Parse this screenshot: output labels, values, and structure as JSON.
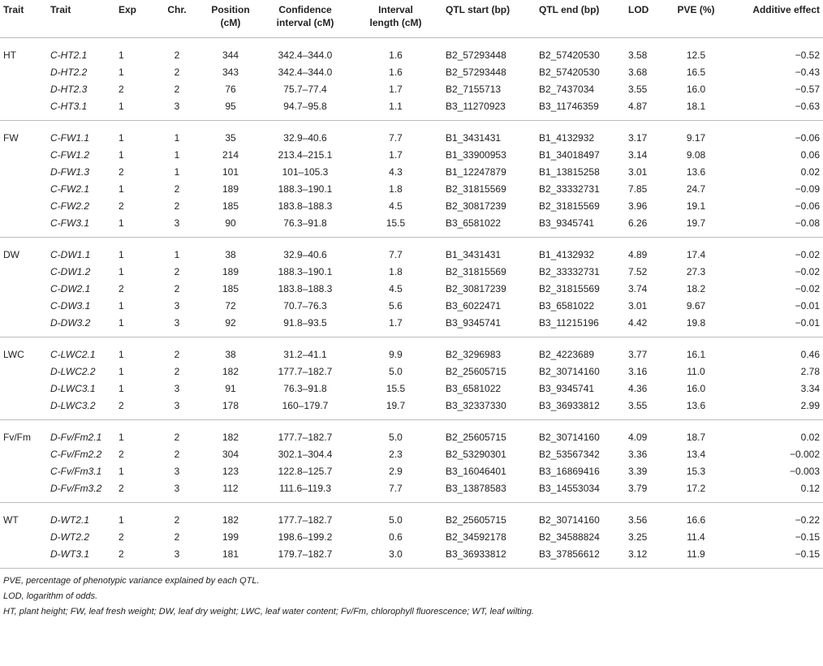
{
  "table": {
    "headers": [
      "Trait",
      "Trait",
      "Exp",
      "Chr.",
      "Position\n(cM)",
      "Confidence\ninterval (cM)",
      "Interval\nlength (cM)",
      "QTL start (bp)",
      "QTL end (bp)",
      "LOD",
      "PVE (%)",
      "Additive effect"
    ],
    "groups": [
      {
        "trait": "HT",
        "rows": [
          [
            "C-HT2.1",
            "1",
            "2",
            "344",
            "342.4–344.0",
            "1.6",
            "B2_57293448",
            "B2_57420530",
            "3.58",
            "12.5",
            "−0.52"
          ],
          [
            "D-HT2.2",
            "1",
            "2",
            "343",
            "342.4–344.0",
            "1.6",
            "B2_57293448",
            "B2_57420530",
            "3.68",
            "16.5",
            "−0.43"
          ],
          [
            "D-HT2.3",
            "2",
            "2",
            "76",
            "75.7–77.4",
            "1.7",
            "B2_7155713",
            "B2_7437034",
            "3.55",
            "16.0",
            "−0.57"
          ],
          [
            "C-HT3.1",
            "1",
            "3",
            "95",
            "94.7–95.8",
            "1.1",
            "B3_11270923",
            "B3_11746359",
            "4.87",
            "18.1",
            "−0.63"
          ]
        ]
      },
      {
        "trait": "FW",
        "rows": [
          [
            "C-FW1.1",
            "1",
            "1",
            "35",
            "32.9–40.6",
            "7.7",
            "B1_3431431",
            "B1_4132932",
            "3.17",
            "9.17",
            "−0.06"
          ],
          [
            "C-FW1.2",
            "1",
            "1",
            "214",
            "213.4–215.1",
            "1.7",
            "B1_33900953",
            "B1_34018497",
            "3.14",
            "9.08",
            "0.06"
          ],
          [
            "D-FW1.3",
            "2",
            "1",
            "101",
            "101–105.3",
            "4.3",
            "B1_12247879",
            "B1_13815258",
            "3.01",
            "13.6",
            "0.02"
          ],
          [
            "C-FW2.1",
            "1",
            "2",
            "189",
            "188.3–190.1",
            "1.8",
            "B2_31815569",
            "B2_33332731",
            "7.85",
            "24.7",
            "−0.09"
          ],
          [
            "C-FW2.2",
            "2",
            "2",
            "185",
            "183.8–188.3",
            "4.5",
            "B2_30817239",
            "B2_31815569",
            "3.96",
            "19.1",
            "−0.06"
          ],
          [
            "C-FW3.1",
            "1",
            "3",
            "90",
            "76.3–91.8",
            "15.5",
            "B3_6581022",
            "B3_9345741",
            "6.26",
            "19.7",
            "−0.08"
          ]
        ]
      },
      {
        "trait": "DW",
        "rows": [
          [
            "C-DW1.1",
            "1",
            "1",
            "38",
            "32.9–40.6",
            "7.7",
            "B1_3431431",
            "B1_4132932",
            "4.89",
            "17.4",
            "−0.02"
          ],
          [
            "C-DW1.2",
            "1",
            "2",
            "189",
            "188.3–190.1",
            "1.8",
            "B2_31815569",
            "B2_33332731",
            "7.52",
            "27.3",
            "−0.02"
          ],
          [
            "C-DW2.1",
            "2",
            "2",
            "185",
            "183.8–188.3",
            "4.5",
            "B2_30817239",
            "B2_31815569",
            "3.74",
            "18.2",
            "−0.02"
          ],
          [
            "C-DW3.1",
            "1",
            "3",
            "72",
            "70.7–76.3",
            "5.6",
            "B3_6022471",
            "B3_6581022",
            "3.01",
            "9.67",
            "−0.01"
          ],
          [
            "D-DW3.2",
            "1",
            "3",
            "92",
            "91.8–93.5",
            "1.7",
            "B3_9345741",
            "B3_11215196",
            "4.42",
            "19.8",
            "−0.01"
          ]
        ]
      },
      {
        "trait": "LWC",
        "rows": [
          [
            "C-LWC2.1",
            "1",
            "2",
            "38",
            "31.2–41.1",
            "9.9",
            "B2_3296983",
            "B2_4223689",
            "3.77",
            "16.1",
            "0.46"
          ],
          [
            "D-LWC2.2",
            "1",
            "2",
            "182",
            "177.7–182.7",
            "5.0",
            "B2_25605715",
            "B2_30714160",
            "3.16",
            "11.0",
            "2.78"
          ],
          [
            "D-LWC3.1",
            "1",
            "3",
            "91",
            "76.3–91.8",
            "15.5",
            "B3_6581022",
            "B3_9345741",
            "4.36",
            "16.0",
            "3.34"
          ],
          [
            "D-LWC3.2",
            "2",
            "3",
            "178",
            "160–179.7",
            "19.7",
            "B3_32337330",
            "B3_36933812",
            "3.55",
            "13.6",
            "2.99"
          ]
        ]
      },
      {
        "trait": "Fv/Fm",
        "rows": [
          [
            "D-Fv/Fm2.1",
            "1",
            "2",
            "182",
            "177.7–182.7",
            "5.0",
            "B2_25605715",
            "B2_30714160",
            "4.09",
            "18.7",
            "0.02"
          ],
          [
            "C-Fv/Fm2.2",
            "2",
            "2",
            "304",
            "302.1–304.4",
            "2.3",
            "B2_53290301",
            "B2_53567342",
            "3.36",
            "13.4",
            "−0.002"
          ],
          [
            "C-Fv/Fm3.1",
            "1",
            "3",
            "123",
            "122.8–125.7",
            "2.9",
            "B3_16046401",
            "B3_16869416",
            "3.39",
            "15.3",
            "−0.003"
          ],
          [
            "D-Fv/Fm3.2",
            "2",
            "3",
            "112",
            "111.6–119.3",
            "7.7",
            "B3_13878583",
            "B3_14553034",
            "3.79",
            "17.2",
            "0.12"
          ]
        ]
      },
      {
        "trait": "WT",
        "rows": [
          [
            "D-WT2.1",
            "1",
            "2",
            "182",
            "177.7–182.7",
            "5.0",
            "B2_25605715",
            "B2_30714160",
            "3.56",
            "16.6",
            "−0.22"
          ],
          [
            "D-WT2.2",
            "2",
            "2",
            "199",
            "198.6–199.2",
            "0.6",
            "B2_34592178",
            "B2_34588824",
            "3.25",
            "11.4",
            "−0.15"
          ],
          [
            "D-WT3.1",
            "2",
            "3",
            "181",
            "179.7–182.7",
            "3.0",
            "B3_36933812",
            "B3_37856612",
            "3.12",
            "11.9",
            "−0.15"
          ]
        ]
      }
    ]
  },
  "footnotes": [
    "PVE, percentage of phenotypic variance explained by each QTL.",
    "LOD, logarithm of odds.",
    "HT, plant height; FW, leaf fresh weight; DW, leaf dry weight; LWC, leaf water content; Fv/Fm, chlorophyll fluorescence; WT, leaf wilting."
  ]
}
